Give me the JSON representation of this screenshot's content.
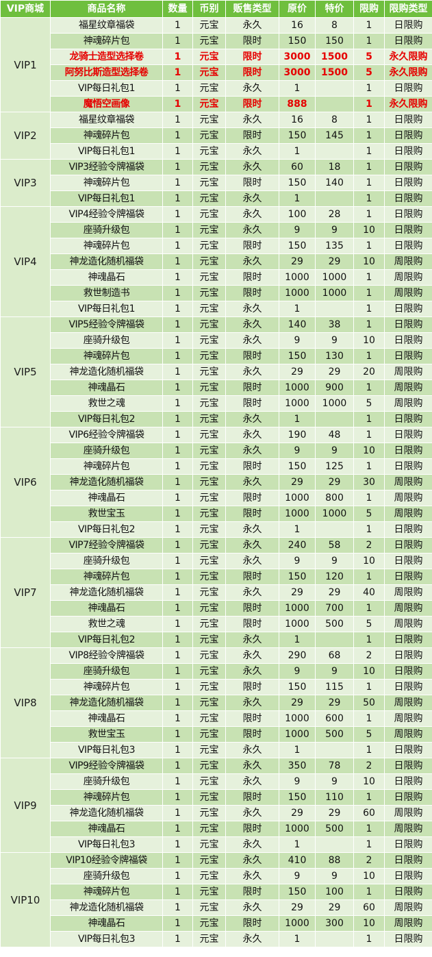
{
  "colors": {
    "header_bg": "#6fbf3e",
    "header_text": "#ffffff",
    "row_light": "#e6f1dc",
    "row_dark": "#c8e2b3",
    "group_cell": "#dbeccb",
    "highlight_text": "#e60000"
  },
  "headers": [
    "VIP商城",
    "商品名称",
    "数量",
    "币别",
    "贩售类型",
    "原价",
    "特价",
    "限购",
    "限购类型"
  ],
  "groups": [
    {
      "vip": "VIP1",
      "rows": [
        {
          "name": "福星纹章福袋",
          "qty": "1",
          "currency": "元宝",
          "sale_type": "永久",
          "orig": "16",
          "special": "8",
          "limit": "1",
          "limit_type": "日限购",
          "highlight": false
        },
        {
          "name": "神魂碎片包",
          "qty": "1",
          "currency": "元宝",
          "sale_type": "限时",
          "orig": "150",
          "special": "150",
          "limit": "1",
          "limit_type": "日限购",
          "highlight": false
        },
        {
          "name": "龙骑士造型选择卷",
          "qty": "1",
          "currency": "元宝",
          "sale_type": "限时",
          "orig": "3000",
          "special": "1500",
          "limit": "5",
          "limit_type": "永久限购",
          "highlight": true
        },
        {
          "name": "阿努比斯造型选择卷",
          "qty": "1",
          "currency": "元宝",
          "sale_type": "限时",
          "orig": "3000",
          "special": "1500",
          "limit": "5",
          "limit_type": "永久限购",
          "highlight": true
        },
        {
          "name": "VIP每日礼包1",
          "qty": "1",
          "currency": "元宝",
          "sale_type": "永久",
          "orig": "1",
          "special": "",
          "limit": "1",
          "limit_type": "日限购",
          "highlight": false
        },
        {
          "name": "魔悟空画像",
          "qty": "1",
          "currency": "元宝",
          "sale_type": "限时",
          "orig": "888",
          "special": "",
          "limit": "1",
          "limit_type": "永久限购",
          "highlight": true
        }
      ]
    },
    {
      "vip": "VIP2",
      "rows": [
        {
          "name": "福星纹章福袋",
          "qty": "1",
          "currency": "元宝",
          "sale_type": "永久",
          "orig": "16",
          "special": "8",
          "limit": "1",
          "limit_type": "日限购",
          "highlight": false
        },
        {
          "name": "神魂碎片包",
          "qty": "1",
          "currency": "元宝",
          "sale_type": "限时",
          "orig": "150",
          "special": "145",
          "limit": "1",
          "limit_type": "日限购",
          "highlight": false
        },
        {
          "name": "VIP每日礼包1",
          "qty": "1",
          "currency": "元宝",
          "sale_type": "永久",
          "orig": "1",
          "special": "",
          "limit": "1",
          "limit_type": "日限购",
          "highlight": false
        }
      ]
    },
    {
      "vip": "VIP3",
      "rows": [
        {
          "name": "VIP3经验令牌福袋",
          "qty": "1",
          "currency": "元宝",
          "sale_type": "永久",
          "orig": "60",
          "special": "18",
          "limit": "1",
          "limit_type": "日限购",
          "highlight": false
        },
        {
          "name": "神魂碎片包",
          "qty": "1",
          "currency": "元宝",
          "sale_type": "限时",
          "orig": "150",
          "special": "140",
          "limit": "1",
          "limit_type": "日限购",
          "highlight": false
        },
        {
          "name": "VIP每日礼包1",
          "qty": "1",
          "currency": "元宝",
          "sale_type": "永久",
          "orig": "1",
          "special": "",
          "limit": "1",
          "limit_type": "日限购",
          "highlight": false
        }
      ]
    },
    {
      "vip": "VIP4",
      "rows": [
        {
          "name": "VIP4经验令牌福袋",
          "qty": "1",
          "currency": "元宝",
          "sale_type": "永久",
          "orig": "100",
          "special": "28",
          "limit": "1",
          "limit_type": "日限购",
          "highlight": false
        },
        {
          "name": "座骑升级包",
          "qty": "1",
          "currency": "元宝",
          "sale_type": "永久",
          "orig": "9",
          "special": "9",
          "limit": "10",
          "limit_type": "日限购",
          "highlight": false
        },
        {
          "name": "神魂碎片包",
          "qty": "1",
          "currency": "元宝",
          "sale_type": "限时",
          "orig": "150",
          "special": "135",
          "limit": "1",
          "limit_type": "日限购",
          "highlight": false
        },
        {
          "name": "神龙造化随机福袋",
          "qty": "1",
          "currency": "元宝",
          "sale_type": "永久",
          "orig": "29",
          "special": "29",
          "limit": "10",
          "limit_type": "周限购",
          "highlight": false
        },
        {
          "name": "神魂晶石",
          "qty": "1",
          "currency": "元宝",
          "sale_type": "限时",
          "orig": "1000",
          "special": "1000",
          "limit": "1",
          "limit_type": "周限购",
          "highlight": false
        },
        {
          "name": "救世制造书",
          "qty": "1",
          "currency": "元宝",
          "sale_type": "限时",
          "orig": "1000",
          "special": "1000",
          "limit": "1",
          "limit_type": "周限购",
          "highlight": false
        },
        {
          "name": "VIP每日礼包1",
          "qty": "1",
          "currency": "元宝",
          "sale_type": "永久",
          "orig": "1",
          "special": "",
          "limit": "1",
          "limit_type": "日限购",
          "highlight": false
        }
      ]
    },
    {
      "vip": "VIP5",
      "rows": [
        {
          "name": "VIP5经验令牌福袋",
          "qty": "1",
          "currency": "元宝",
          "sale_type": "永久",
          "orig": "140",
          "special": "38",
          "limit": "1",
          "limit_type": "日限购",
          "highlight": false
        },
        {
          "name": "座骑升级包",
          "qty": "1",
          "currency": "元宝",
          "sale_type": "永久",
          "orig": "9",
          "special": "9",
          "limit": "10",
          "limit_type": "日限购",
          "highlight": false
        },
        {
          "name": "神魂碎片包",
          "qty": "1",
          "currency": "元宝",
          "sale_type": "限时",
          "orig": "150",
          "special": "130",
          "limit": "1",
          "limit_type": "日限购",
          "highlight": false
        },
        {
          "name": "神龙造化随机福袋",
          "qty": "1",
          "currency": "元宝",
          "sale_type": "永久",
          "orig": "29",
          "special": "29",
          "limit": "20",
          "limit_type": "周限购",
          "highlight": false
        },
        {
          "name": "神魂晶石",
          "qty": "1",
          "currency": "元宝",
          "sale_type": "限时",
          "orig": "1000",
          "special": "900",
          "limit": "1",
          "limit_type": "周限购",
          "highlight": false
        },
        {
          "name": "救世之魂",
          "qty": "1",
          "currency": "元宝",
          "sale_type": "限时",
          "orig": "1000",
          "special": "1000",
          "limit": "5",
          "limit_type": "周限购",
          "highlight": false
        },
        {
          "name": "VIP每日礼包2",
          "qty": "1",
          "currency": "元宝",
          "sale_type": "永久",
          "orig": "1",
          "special": "",
          "limit": "1",
          "limit_type": "日限购",
          "highlight": false
        }
      ]
    },
    {
      "vip": "VIP6",
      "rows": [
        {
          "name": "VIP6经验令牌福袋",
          "qty": "1",
          "currency": "元宝",
          "sale_type": "永久",
          "orig": "190",
          "special": "48",
          "limit": "1",
          "limit_type": "日限购",
          "highlight": false
        },
        {
          "name": "座骑升级包",
          "qty": "1",
          "currency": "元宝",
          "sale_type": "永久",
          "orig": "9",
          "special": "9",
          "limit": "10",
          "limit_type": "日限购",
          "highlight": false
        },
        {
          "name": "神魂碎片包",
          "qty": "1",
          "currency": "元宝",
          "sale_type": "限时",
          "orig": "150",
          "special": "125",
          "limit": "1",
          "limit_type": "日限购",
          "highlight": false
        },
        {
          "name": "神龙造化随机福袋",
          "qty": "1",
          "currency": "元宝",
          "sale_type": "永久",
          "orig": "29",
          "special": "29",
          "limit": "30",
          "limit_type": "周限购",
          "highlight": false
        },
        {
          "name": "神魂晶石",
          "qty": "1",
          "currency": "元宝",
          "sale_type": "限时",
          "orig": "1000",
          "special": "800",
          "limit": "1",
          "limit_type": "周限购",
          "highlight": false
        },
        {
          "name": "救世宝玉",
          "qty": "1",
          "currency": "元宝",
          "sale_type": "限时",
          "orig": "1000",
          "special": "1000",
          "limit": "5",
          "limit_type": "周限购",
          "highlight": false
        },
        {
          "name": "VIP每日礼包2",
          "qty": "1",
          "currency": "元宝",
          "sale_type": "永久",
          "orig": "1",
          "special": "",
          "limit": "1",
          "limit_type": "日限购",
          "highlight": false
        }
      ]
    },
    {
      "vip": "VIP7",
      "rows": [
        {
          "name": "VIP7经验令牌福袋",
          "qty": "1",
          "currency": "元宝",
          "sale_type": "永久",
          "orig": "240",
          "special": "58",
          "limit": "2",
          "limit_type": "日限购",
          "highlight": false
        },
        {
          "name": "座骑升级包",
          "qty": "1",
          "currency": "元宝",
          "sale_type": "永久",
          "orig": "9",
          "special": "9",
          "limit": "10",
          "limit_type": "日限购",
          "highlight": false
        },
        {
          "name": "神魂碎片包",
          "qty": "1",
          "currency": "元宝",
          "sale_type": "限时",
          "orig": "150",
          "special": "120",
          "limit": "1",
          "limit_type": "日限购",
          "highlight": false
        },
        {
          "name": "神龙造化随机福袋",
          "qty": "1",
          "currency": "元宝",
          "sale_type": "永久",
          "orig": "29",
          "special": "29",
          "limit": "40",
          "limit_type": "周限购",
          "highlight": false
        },
        {
          "name": "神魂晶石",
          "qty": "1",
          "currency": "元宝",
          "sale_type": "限时",
          "orig": "1000",
          "special": "700",
          "limit": "1",
          "limit_type": "周限购",
          "highlight": false
        },
        {
          "name": "救世之魂",
          "qty": "1",
          "currency": "元宝",
          "sale_type": "限时",
          "orig": "1000",
          "special": "500",
          "limit": "5",
          "limit_type": "周限购",
          "highlight": false
        },
        {
          "name": "VIP每日礼包2",
          "qty": "1",
          "currency": "元宝",
          "sale_type": "永久",
          "orig": "1",
          "special": "",
          "limit": "1",
          "limit_type": "日限购",
          "highlight": false
        }
      ]
    },
    {
      "vip": "VIP8",
      "rows": [
        {
          "name": "VIP8经验令牌福袋",
          "qty": "1",
          "currency": "元宝",
          "sale_type": "永久",
          "orig": "290",
          "special": "68",
          "limit": "2",
          "limit_type": "日限购",
          "highlight": false
        },
        {
          "name": "座骑升级包",
          "qty": "1",
          "currency": "元宝",
          "sale_type": "永久",
          "orig": "9",
          "special": "9",
          "limit": "10",
          "limit_type": "日限购",
          "highlight": false
        },
        {
          "name": "神魂碎片包",
          "qty": "1",
          "currency": "元宝",
          "sale_type": "限时",
          "orig": "150",
          "special": "115",
          "limit": "1",
          "limit_type": "日限购",
          "highlight": false
        },
        {
          "name": "神龙造化随机福袋",
          "qty": "1",
          "currency": "元宝",
          "sale_type": "永久",
          "orig": "29",
          "special": "29",
          "limit": "50",
          "limit_type": "周限购",
          "highlight": false
        },
        {
          "name": "神魂晶石",
          "qty": "1",
          "currency": "元宝",
          "sale_type": "限时",
          "orig": "1000",
          "special": "600",
          "limit": "1",
          "limit_type": "周限购",
          "highlight": false
        },
        {
          "name": "救世宝玉",
          "qty": "1",
          "currency": "元宝",
          "sale_type": "限时",
          "orig": "1000",
          "special": "500",
          "limit": "5",
          "limit_type": "周限购",
          "highlight": false
        },
        {
          "name": "VIP每日礼包3",
          "qty": "1",
          "currency": "元宝",
          "sale_type": "永久",
          "orig": "1",
          "special": "",
          "limit": "1",
          "limit_type": "日限购",
          "highlight": false
        }
      ]
    },
    {
      "vip": "VIP9",
      "rows": [
        {
          "name": "VIP9经验令牌福袋",
          "qty": "1",
          "currency": "元宝",
          "sale_type": "永久",
          "orig": "350",
          "special": "78",
          "limit": "2",
          "limit_type": "日限购",
          "highlight": false
        },
        {
          "name": "座骑升级包",
          "qty": "1",
          "currency": "元宝",
          "sale_type": "永久",
          "orig": "9",
          "special": "9",
          "limit": "10",
          "limit_type": "日限购",
          "highlight": false
        },
        {
          "name": "神魂碎片包",
          "qty": "1",
          "currency": "元宝",
          "sale_type": "限时",
          "orig": "150",
          "special": "110",
          "limit": "1",
          "limit_type": "日限购",
          "highlight": false
        },
        {
          "name": "神龙造化随机福袋",
          "qty": "1",
          "currency": "元宝",
          "sale_type": "永久",
          "orig": "29",
          "special": "29",
          "limit": "60",
          "limit_type": "周限购",
          "highlight": false
        },
        {
          "name": "神魂晶石",
          "qty": "1",
          "currency": "元宝",
          "sale_type": "限时",
          "orig": "1000",
          "special": "500",
          "limit": "1",
          "limit_type": "周限购",
          "highlight": false
        },
        {
          "name": "VIP每日礼包3",
          "qty": "1",
          "currency": "元宝",
          "sale_type": "永久",
          "orig": "1",
          "special": "",
          "limit": "1",
          "limit_type": "日限购",
          "highlight": false
        }
      ]
    },
    {
      "vip": "VIP10",
      "rows": [
        {
          "name": "VIP10经验令牌福袋",
          "qty": "1",
          "currency": "元宝",
          "sale_type": "永久",
          "orig": "410",
          "special": "88",
          "limit": "2",
          "limit_type": "日限购",
          "highlight": false
        },
        {
          "name": "座骑升级包",
          "qty": "1",
          "currency": "元宝",
          "sale_type": "永久",
          "orig": "9",
          "special": "9",
          "limit": "10",
          "limit_type": "日限购",
          "highlight": false
        },
        {
          "name": "神魂碎片包",
          "qty": "1",
          "currency": "元宝",
          "sale_type": "限时",
          "orig": "150",
          "special": "100",
          "limit": "1",
          "limit_type": "日限购",
          "highlight": false
        },
        {
          "name": "神龙造化随机福袋",
          "qty": "1",
          "currency": "元宝",
          "sale_type": "永久",
          "orig": "29",
          "special": "29",
          "limit": "60",
          "limit_type": "周限购",
          "highlight": false
        },
        {
          "name": "神魂晶石",
          "qty": "1",
          "currency": "元宝",
          "sale_type": "限时",
          "orig": "1000",
          "special": "300",
          "limit": "10",
          "limit_type": "周限购",
          "highlight": false
        },
        {
          "name": "VIP每日礼包3",
          "qty": "1",
          "currency": "元宝",
          "sale_type": "永久",
          "orig": "1",
          "special": "",
          "limit": "1",
          "limit_type": "日限购",
          "highlight": false
        }
      ]
    }
  ]
}
